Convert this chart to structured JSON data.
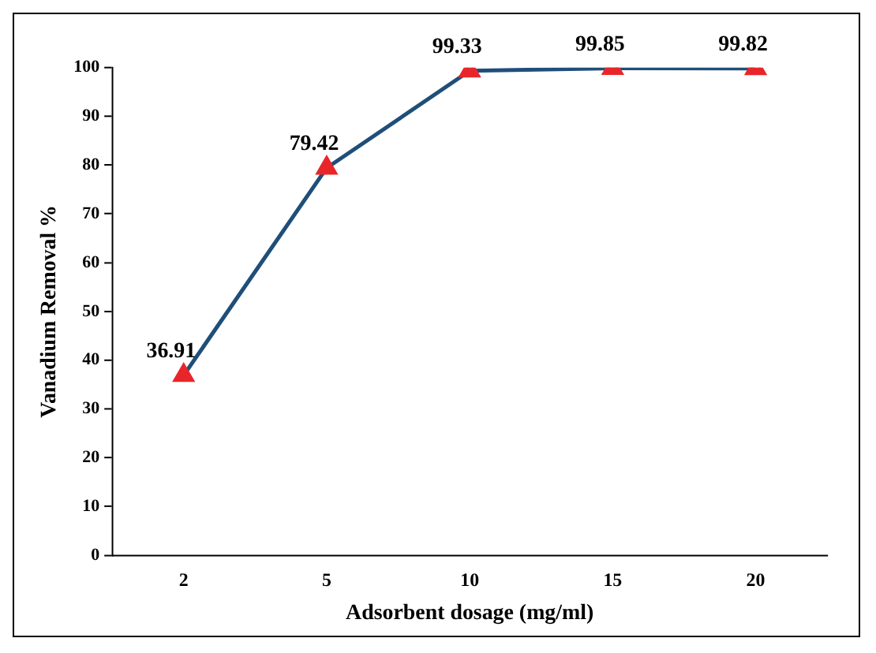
{
  "chart_data": {
    "type": "line",
    "xlabel": "Adsorbent dosage (mg/ml)",
    "ylabel": "Vanadium Removal %",
    "categories": [
      "2",
      "5",
      "10",
      "15",
      "20"
    ],
    "series": [
      {
        "color": "#1f4e79",
        "colors": [
          "#e8262a",
          "#e8262a",
          "#e8262a",
          "#e8262a",
          "#e8262a"
        ],
        "values": [
          36.91,
          79.42,
          99.33,
          99.85,
          99.82
        ]
      }
    ],
    "ylim": [
      0,
      100
    ],
    "yticks": [
      0,
      10,
      20,
      30,
      40,
      50,
      60,
      70,
      80,
      90,
      100
    ],
    "marker": "triangle",
    "data_labels": true,
    "grid": false,
    "legend": false,
    "line_style": "solid"
  }
}
